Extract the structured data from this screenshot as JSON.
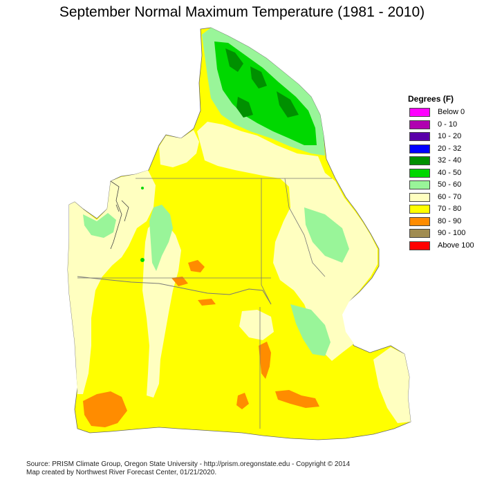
{
  "title": "September Normal Maximum Temperature (1981 - 2010)",
  "legend": {
    "title": "Degrees (F)",
    "items": [
      {
        "label": "Below 0",
        "color": "#ff00ff"
      },
      {
        "label": "0 - 10",
        "color": "#b000b0"
      },
      {
        "label": "10 - 20",
        "color": "#5a00a8"
      },
      {
        "label": "20 - 32",
        "color": "#0000ff"
      },
      {
        "label": "32 - 40",
        "color": "#009000"
      },
      {
        "label": "40 - 50",
        "color": "#00d800"
      },
      {
        "label": "50 - 60",
        "color": "#99f599"
      },
      {
        "label": "60 - 70",
        "color": "#ffffc0"
      },
      {
        "label": "70 - 80",
        "color": "#ffff00"
      },
      {
        "label": "80 - 90",
        "color": "#ff8c00"
      },
      {
        "label": "90 - 100",
        "color": "#a08c50"
      },
      {
        "label": "Above 100",
        "color": "#ff0000"
      }
    ]
  },
  "footer": {
    "source": "Source: PRISM Climate Group, Oregon State University - http://prism.oregonstate.edu - Copyright © 2014",
    "credit": "Map created by Northwest River Forecast Center, 01/21/2020."
  }
}
